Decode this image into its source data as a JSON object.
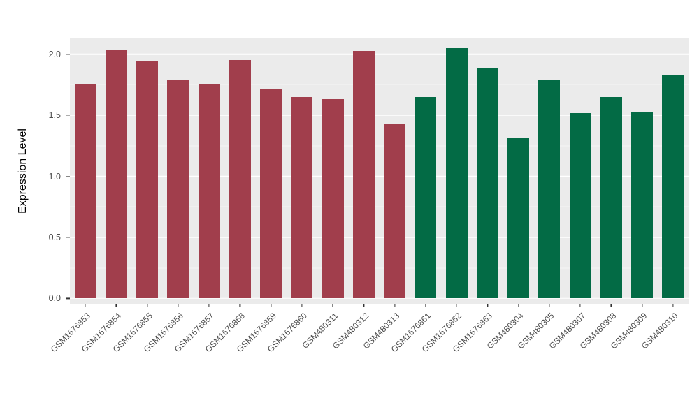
{
  "chart_data": {
    "type": "bar",
    "title": "",
    "xlabel": "",
    "ylabel": "Expression Level",
    "ylim": [
      -0.043,
      2.13
    ],
    "ytick_labels": [
      "0.0",
      "0.5",
      "1.0",
      "1.5",
      "2.0"
    ],
    "ytick_values": [
      0,
      0.5,
      1.0,
      1.5,
      2.0
    ],
    "yticks_minor": [
      0.25,
      0.75,
      1.25,
      1.75
    ],
    "grid": true,
    "legend": false,
    "panel_bg": "#EBEBEB",
    "gridline_color": "#FFFFFF",
    "categories": [
      "GSM1676853",
      "GSM1676854",
      "GSM1676855",
      "GSM1676856",
      "GSM1676857",
      "GSM1676858",
      "GSM1676859",
      "GSM1676860",
      "GSM480311",
      "GSM480312",
      "GSM480313",
      "GSM1676861",
      "GSM1676862",
      "GSM1676863",
      "GSM480304",
      "GSM480305",
      "GSM480307",
      "GSM480308",
      "GSM480309",
      "GSM480310"
    ],
    "values": [
      1.76,
      2.04,
      1.94,
      1.79,
      1.75,
      1.95,
      1.71,
      1.65,
      1.63,
      2.03,
      1.43,
      1.65,
      2.05,
      1.89,
      1.32,
      1.79,
      1.52,
      1.65,
      1.53,
      1.83
    ],
    "bar_groups": [
      "group1",
      "group1",
      "group1",
      "group1",
      "group1",
      "group1",
      "group1",
      "group1",
      "group1",
      "group1",
      "group1",
      "group2",
      "group2",
      "group2",
      "group2",
      "group2",
      "group2",
      "group2",
      "group2",
      "group2"
    ],
    "series_colors": {
      "group1": "#A13E4C",
      "group2": "#036B45"
    }
  }
}
